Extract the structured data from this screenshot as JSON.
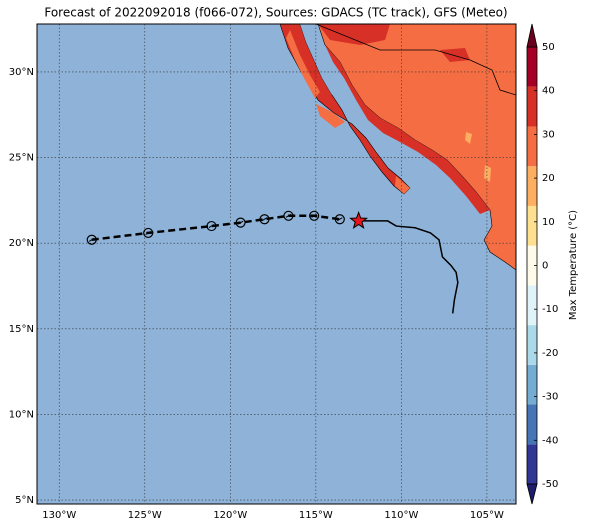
{
  "chart_data": {
    "type": "map",
    "title": "Forecast of 2022092018 (f066-072), Sources: GDACS (TC track), GFS (Meteo)",
    "xlim": [
      -131.3,
      -103.3
    ],
    "ylim": [
      4.77,
      32.8
    ],
    "xticks": [
      {
        "value": -130,
        "label": "130°W"
      },
      {
        "value": -125,
        "label": "125°W"
      },
      {
        "value": -120,
        "label": "120°W"
      },
      {
        "value": -115,
        "label": "115°W"
      },
      {
        "value": -110,
        "label": "110°W"
      },
      {
        "value": -105,
        "label": "105°W"
      }
    ],
    "yticks": [
      {
        "value": 5,
        "label": "5°N"
      },
      {
        "value": 10,
        "label": "10°N"
      },
      {
        "value": 15,
        "label": "15°N"
      },
      {
        "value": 20,
        "label": "20°N"
      },
      {
        "value": 25,
        "label": "25°N"
      },
      {
        "value": 30,
        "label": "30°N"
      }
    ],
    "grid": true,
    "ocean_color": "#8fb3d8",
    "forecast_track": {
      "lon": [
        -128.1,
        -124.8,
        -121.1,
        -119.4,
        -118.0,
        -116.6,
        -115.1,
        -113.6
      ],
      "lat": [
        20.2,
        20.6,
        21.0,
        21.2,
        21.4,
        21.6,
        21.6,
        21.4
      ]
    },
    "current_position": {
      "lon": -112.5,
      "lat": 21.3,
      "color": "#e8141c"
    },
    "observed_track": {
      "lon": [
        -112.5,
        -111.3,
        -110.8,
        -110.3,
        -109.2,
        -108.3,
        -107.8,
        -107.6,
        -107.1,
        -106.8,
        -106.7,
        -106.9,
        -107.0
      ],
      "lat": [
        21.3,
        21.3,
        21.3,
        21.0,
        20.9,
        20.6,
        20.2,
        19.2,
        18.7,
        18.3,
        17.7,
        16.7,
        15.9
      ]
    },
    "colorbar": {
      "label": "Max Temperature (°C)",
      "clim": [
        -50,
        50
      ],
      "ticks": [
        -50,
        -40,
        -30,
        -20,
        -10,
        0,
        10,
        20,
        30,
        40,
        50
      ],
      "colors": [
        "#313695",
        "#4575b4",
        "#74add1",
        "#abd9e9",
        "#e0f3f8",
        "#fffbea",
        "#fee090",
        "#fdae61",
        "#f46d43",
        "#d73027",
        "#a50026"
      ],
      "extend_colors": [
        "#1d1d6b",
        "#6b0020"
      ]
    }
  }
}
